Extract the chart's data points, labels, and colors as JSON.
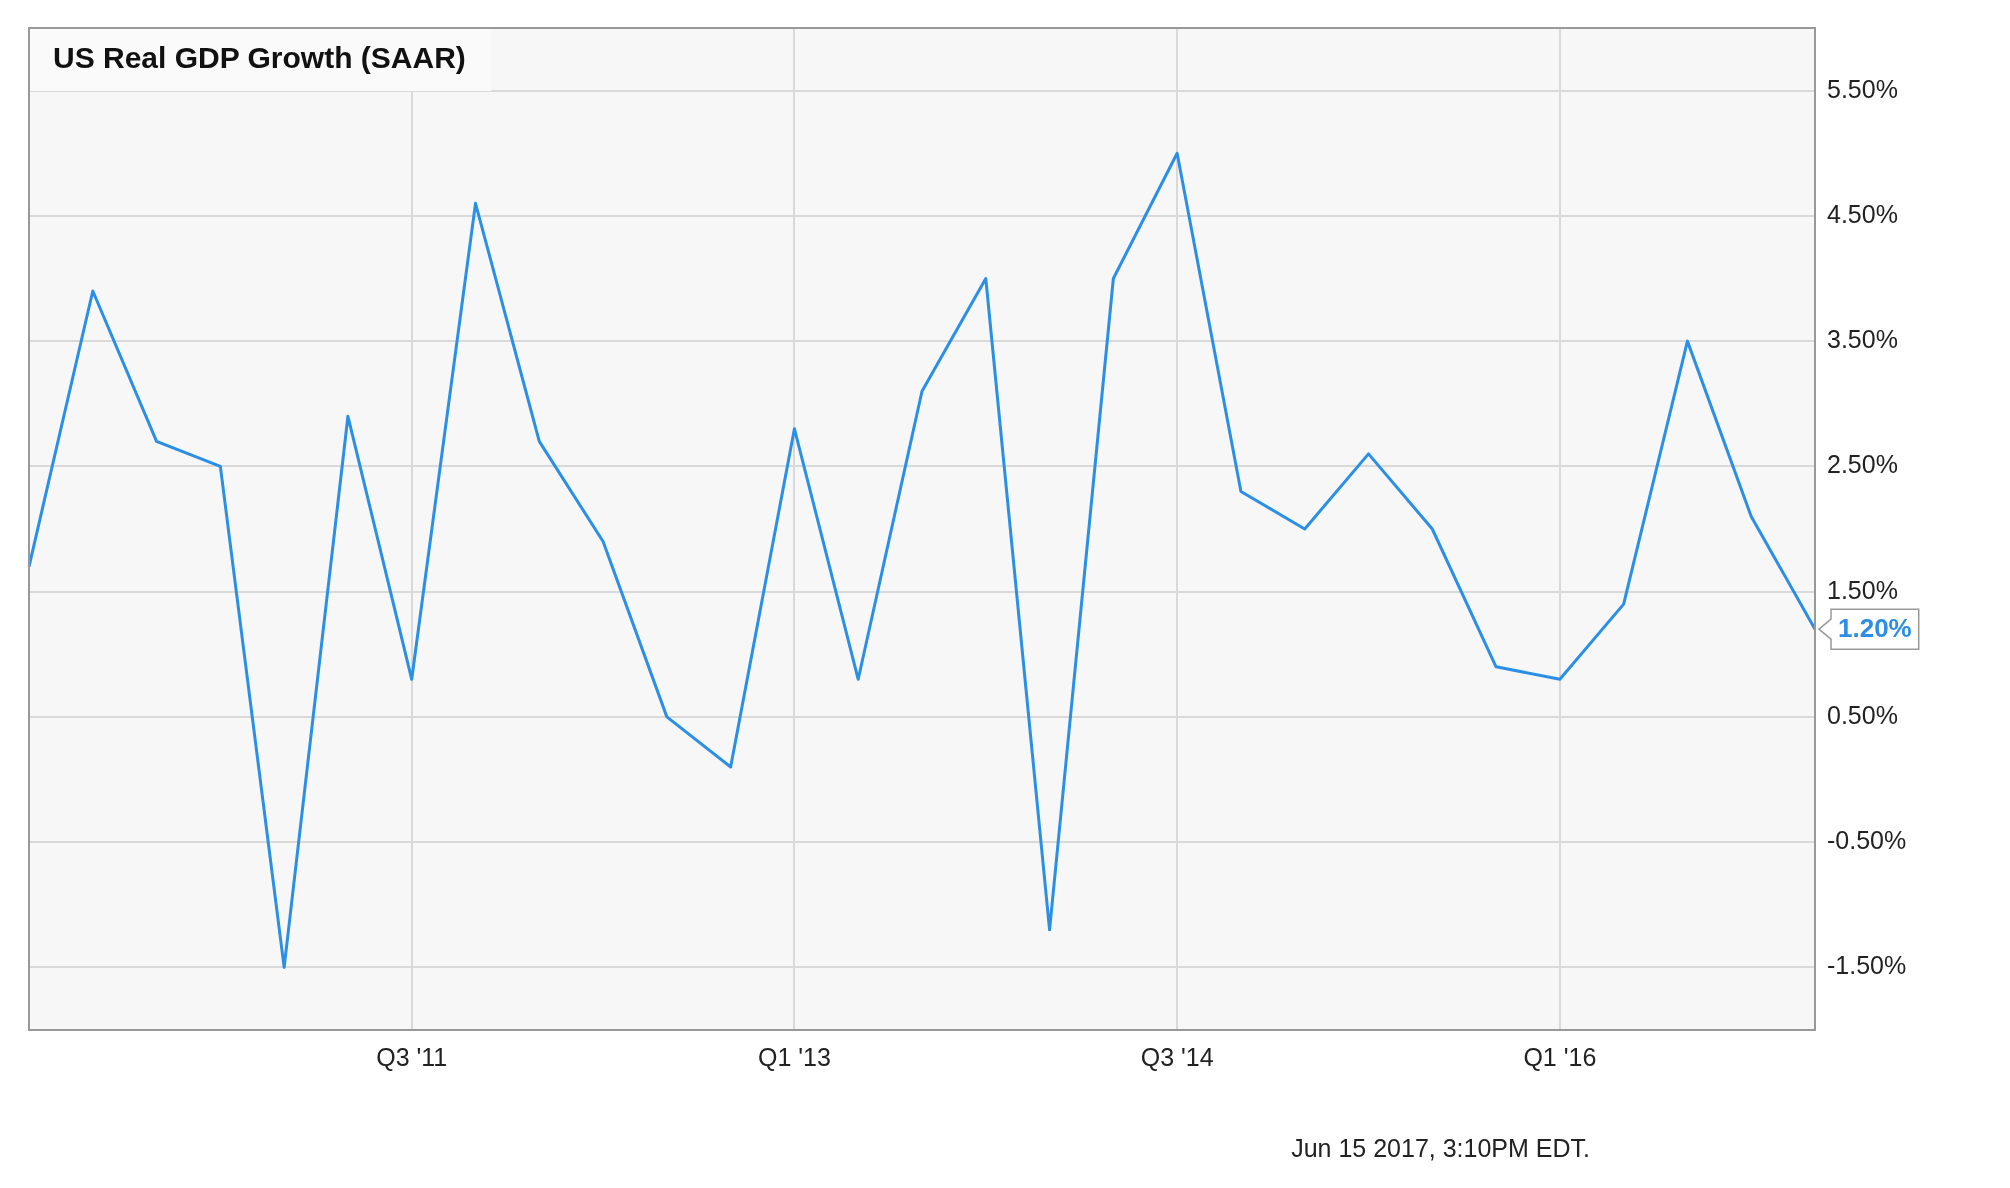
{
  "chart_data": {
    "type": "line",
    "title": "US Real GDP Growth (SAAR)",
    "categories": [
      null,
      null,
      null,
      null,
      null,
      null,
      "Q3 '11",
      null,
      null,
      null,
      null,
      null,
      "Q1 '13",
      null,
      null,
      null,
      null,
      null,
      "Q3 '14",
      null,
      null,
      null,
      null,
      null,
      "Q1 '16",
      null,
      null,
      null,
      null
    ],
    "series": [
      {
        "color": "#2b8fe5",
        "values": [
          1.7,
          3.9,
          2.7,
          2.5,
          -1.5,
          2.9,
          0.8,
          4.6,
          2.7,
          1.9,
          0.5,
          0.1,
          2.8,
          0.8,
          3.1,
          4.0,
          -1.2,
          4.0,
          5.0,
          2.3,
          2.0,
          2.6,
          2.0,
          0.9,
          0.8,
          1.4,
          3.5,
          2.1,
          1.2
        ],
        "value_labels": [
          null,
          null,
          null,
          null,
          null,
          null,
          null,
          null,
          null,
          null,
          null,
          null,
          null,
          null,
          null,
          null,
          null,
          null,
          null,
          null,
          null,
          null,
          null,
          null,
          null,
          null,
          null,
          null,
          "1.20%"
        ]
      }
    ],
    "ylim": [
      -2,
      6
    ],
    "yticks": [
      {
        "value": -1.5,
        "label": "-1.50%"
      },
      {
        "value": -0.5,
        "label": "-0.50%"
      },
      {
        "value": 0.5,
        "label": "0.50%"
      },
      {
        "value": 1.5,
        "label": "1.50%"
      },
      {
        "value": 2.5,
        "label": "2.50%"
      },
      {
        "value": 3.5,
        "label": "3.50%"
      },
      {
        "value": 4.5,
        "label": "4.50%"
      },
      {
        "value": 5.5,
        "label": "5.50%"
      }
    ],
    "grid": true,
    "legend": false,
    "marker": "none",
    "line_style": "solid",
    "annotations": [
      "Jun 15 2017, 3:10PM EDT."
    ]
  }
}
